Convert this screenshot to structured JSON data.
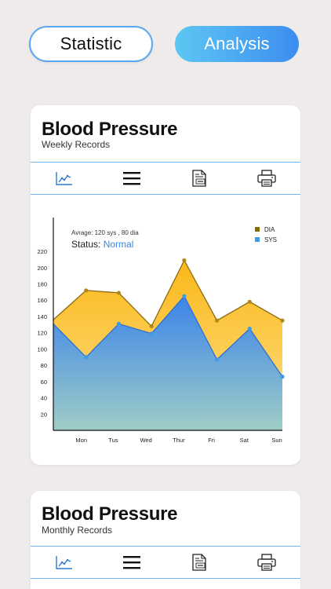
{
  "tabs": {
    "statistic": "Statistic",
    "analysis": "Analysis"
  },
  "weekly": {
    "title": "Blood Pressure",
    "subtitle": "Weekly Records",
    "average_text": "Avrage: 120 sys , 80 dia",
    "status_label": "Status:",
    "status_value": "Normal"
  },
  "monthly": {
    "title": "Blood Pressure",
    "subtitle": "Monthly Records"
  },
  "toolbar_icons": [
    "line-chart-icon",
    "menu-icon",
    "pdf-icon",
    "printer-icon"
  ],
  "colors": {
    "accent": "#3d8df0",
    "dia": "#fbb819",
    "sys": "#3d89e8",
    "legend_dia": "#8a6d00",
    "legend_sys": "#3f9be6"
  },
  "chart_data": {
    "type": "area",
    "categories": [
      "Mon",
      "Tus",
      "Wed",
      "Thur",
      "Fri",
      "Sat",
      "Sun"
    ],
    "yticks": [
      20,
      40,
      60,
      80,
      100,
      120,
      140,
      160,
      180,
      200,
      220
    ],
    "ylim": [
      0,
      260
    ],
    "series": [
      {
        "name": "DIA",
        "start": 136,
        "values": [
          172,
          169,
          128,
          209,
          135,
          158,
          135
        ]
      },
      {
        "name": "SYS",
        "start": 131,
        "values": [
          90,
          131,
          119,
          165,
          87,
          125,
          66
        ]
      }
    ],
    "legend_position": "top-right",
    "grid": false
  }
}
